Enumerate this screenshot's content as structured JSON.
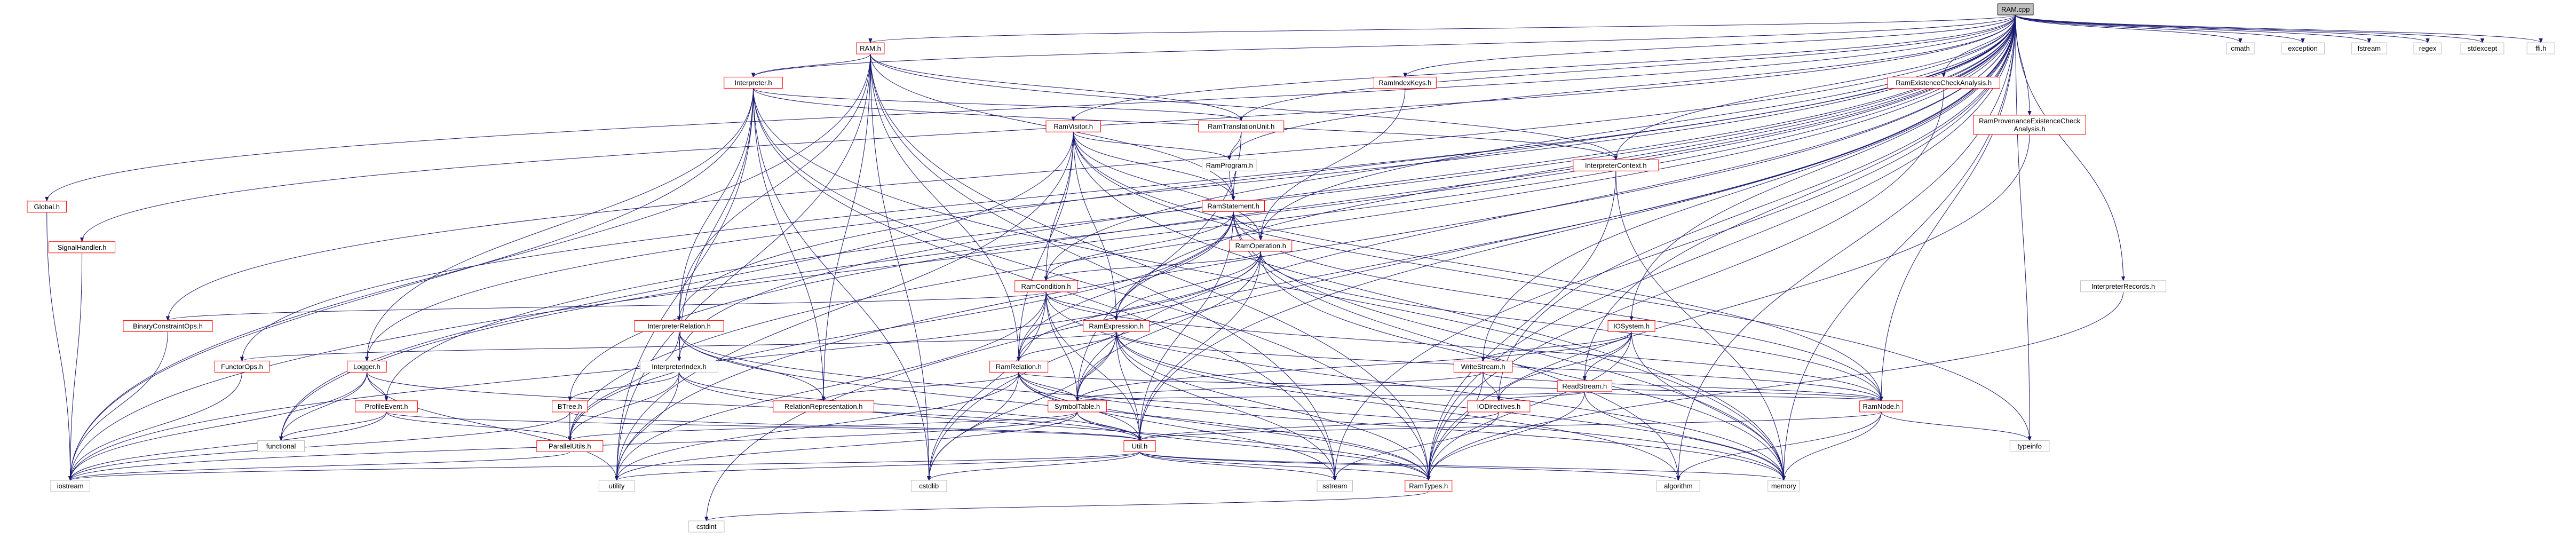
{
  "title": "RAM.cpp",
  "colors": {
    "edge": "#191970",
    "root_fill": "#bfbfbf",
    "linked_border": "#ff0000",
    "plain_border": "#bfbfbf"
  },
  "nodes": [
    {
      "id": "root",
      "label": "RAM.cpp",
      "kind": "root"
    },
    {
      "id": "ram_h",
      "label": "RAM.h",
      "kind": "red"
    },
    {
      "id": "interpreter_h",
      "label": "Interpreter.h",
      "kind": "red"
    },
    {
      "id": "ramindexkeys_h",
      "label": "RamIndexKeys.h",
      "kind": "red"
    },
    {
      "id": "ramexistcheck_h",
      "label": "RamExistenceCheckAnalysis.h",
      "kind": "red"
    },
    {
      "id": "ramprovexist_h",
      "label": "RamProvenanceExistenceCheck\nAnalysis.h",
      "kind": "red"
    },
    {
      "id": "ramvisitor_h",
      "label": "RamVisitor.h",
      "kind": "red"
    },
    {
      "id": "ramtransunit_h",
      "label": "RamTranslationUnit.h",
      "kind": "red"
    },
    {
      "id": "interpctx_h",
      "label": "InterpreterContext.h",
      "kind": "red"
    },
    {
      "id": "ramprogram_h",
      "label": "RamProgram.h",
      "kind": "plain"
    },
    {
      "id": "ramstatement_h",
      "label": "RamStatement.h",
      "kind": "red"
    },
    {
      "id": "ramoperation_h",
      "label": "RamOperation.h",
      "kind": "red"
    },
    {
      "id": "ramcondition_h",
      "label": "RamCondition.h",
      "kind": "red"
    },
    {
      "id": "ramexpression_h",
      "label": "RamExpression.h",
      "kind": "red"
    },
    {
      "id": "ramrelation_h",
      "label": "RamRelation.h",
      "kind": "red"
    },
    {
      "id": "interprelation_h",
      "label": "InterpreterRelation.h",
      "kind": "red"
    },
    {
      "id": "interpindex_h",
      "label": "InterpreterIndex.h",
      "kind": "plain"
    },
    {
      "id": "interprecords_h",
      "label": "InterpreterRecords.h",
      "kind": "plain"
    },
    {
      "id": "iosystem_h",
      "label": "IOSystem.h",
      "kind": "red"
    },
    {
      "id": "writestream_h",
      "label": "WriteStream.h",
      "kind": "red"
    },
    {
      "id": "readstream_h",
      "label": "ReadStream.h",
      "kind": "red"
    },
    {
      "id": "ramnode_h",
      "label": "RamNode.h",
      "kind": "red"
    },
    {
      "id": "iodirectives_h",
      "label": "IODirectives.h",
      "kind": "red"
    },
    {
      "id": "symboltable_h",
      "label": "SymbolTable.h",
      "kind": "red"
    },
    {
      "id": "relrep_h",
      "label": "RelationRepresentation.h",
      "kind": "red"
    },
    {
      "id": "util_h",
      "label": "Util.h",
      "kind": "red"
    },
    {
      "id": "ramtypes_h",
      "label": "RamTypes.h",
      "kind": "red"
    },
    {
      "id": "global_h",
      "label": "Global.h",
      "kind": "red"
    },
    {
      "id": "signalhandler_h",
      "label": "SignalHandler.h",
      "kind": "red"
    },
    {
      "id": "binconstraint_h",
      "label": "BinaryConstraintOps.h",
      "kind": "red"
    },
    {
      "id": "functorops_h",
      "label": "FunctorOps.h",
      "kind": "red"
    },
    {
      "id": "logger_h",
      "label": "Logger.h",
      "kind": "red"
    },
    {
      "id": "profileevent_h",
      "label": "ProfileEvent.h",
      "kind": "red"
    },
    {
      "id": "btree_h",
      "label": "BTree.h",
      "kind": "red"
    },
    {
      "id": "parallelutils_h",
      "label": "ParallelUtils.h",
      "kind": "red"
    },
    {
      "id": "iostream",
      "label": "iostream",
      "kind": "plain"
    },
    {
      "id": "functional",
      "label": "functional",
      "kind": "plain"
    },
    {
      "id": "utility",
      "label": "utility",
      "kind": "plain"
    },
    {
      "id": "cstdlib",
      "label": "cstdlib",
      "kind": "plain"
    },
    {
      "id": "sstream",
      "label": "sstream",
      "kind": "plain"
    },
    {
      "id": "algorithm",
      "label": "algorithm",
      "kind": "plain"
    },
    {
      "id": "memory",
      "label": "memory",
      "kind": "plain"
    },
    {
      "id": "typeinfo",
      "label": "typeinfo",
      "kind": "plain"
    },
    {
      "id": "cstdint",
      "label": "cstdint",
      "kind": "plain"
    },
    {
      "id": "cmath",
      "label": "cmath",
      "kind": "plain"
    },
    {
      "id": "exception",
      "label": "exception",
      "kind": "plain"
    },
    {
      "id": "fstream",
      "label": "fstream",
      "kind": "plain"
    },
    {
      "id": "regex",
      "label": "regex",
      "kind": "plain"
    },
    {
      "id": "stdexcept",
      "label": "stdexcept",
      "kind": "plain"
    },
    {
      "id": "ffi_h",
      "label": "ffi.h",
      "kind": "plain"
    }
  ],
  "edges": [
    [
      "root",
      "ram_h"
    ],
    [
      "root",
      "interpreter_h"
    ],
    [
      "root",
      "ramindexkeys_h"
    ],
    [
      "root",
      "ramexistcheck_h"
    ],
    [
      "root",
      "ramprovexist_h"
    ],
    [
      "root",
      "ramvisitor_h"
    ],
    [
      "root",
      "ramtransunit_h"
    ],
    [
      "root",
      "interpctx_h"
    ],
    [
      "root",
      "ramprogram_h"
    ],
    [
      "root",
      "ramoperation_h"
    ],
    [
      "root",
      "ramcondition_h"
    ],
    [
      "root",
      "ramexpression_h"
    ],
    [
      "root",
      "interprelation_h"
    ],
    [
      "root",
      "interpindex_h"
    ],
    [
      "root",
      "interprecords_h"
    ],
    [
      "root",
      "iosystem_h"
    ],
    [
      "root",
      "writestream_h"
    ],
    [
      "root",
      "readstream_h"
    ],
    [
      "root",
      "ramnode_h"
    ],
    [
      "root",
      "iodirectives_h"
    ],
    [
      "root",
      "symboltable_h"
    ],
    [
      "root",
      "util_h"
    ],
    [
      "root",
      "ramtypes_h"
    ],
    [
      "root",
      "global_h"
    ],
    [
      "root",
      "signalhandler_h"
    ],
    [
      "root",
      "binconstraint_h"
    ],
    [
      "root",
      "functorops_h"
    ],
    [
      "root",
      "logger_h"
    ],
    [
      "root",
      "profileevent_h"
    ],
    [
      "root",
      "btree_h"
    ],
    [
      "root",
      "parallelutils_h"
    ],
    [
      "root",
      "iostream"
    ],
    [
      "root",
      "functional"
    ],
    [
      "root",
      "utility"
    ],
    [
      "root",
      "cstdlib"
    ],
    [
      "root",
      "sstream"
    ],
    [
      "root",
      "algorithm"
    ],
    [
      "root",
      "memory"
    ],
    [
      "root",
      "typeinfo"
    ],
    [
      "root",
      "cstdint"
    ],
    [
      "root",
      "cmath"
    ],
    [
      "root",
      "exception"
    ],
    [
      "root",
      "fstream"
    ],
    [
      "root",
      "regex"
    ],
    [
      "root",
      "stdexcept"
    ],
    [
      "root",
      "ffi_h"
    ],
    [
      "ram_h",
      "interpreter_h"
    ],
    [
      "ram_h",
      "ramtransunit_h"
    ],
    [
      "ram_h",
      "interpctx_h"
    ],
    [
      "ram_h",
      "interprelation_h"
    ],
    [
      "ram_h",
      "ramrelation_h"
    ],
    [
      "ram_h",
      "relrep_h"
    ],
    [
      "ram_h",
      "ramtypes_h"
    ],
    [
      "ram_h",
      "iostream"
    ],
    [
      "ram_h",
      "cstdlib"
    ],
    [
      "ram_h",
      "sstream"
    ],
    [
      "ram_h",
      "utility"
    ],
    [
      "ram_h",
      "ramstatement_h"
    ],
    [
      "interpreter_h",
      "ramtransunit_h"
    ],
    [
      "interpreter_h",
      "interpctx_h"
    ],
    [
      "interpreter_h",
      "interprelation_h"
    ],
    [
      "interpreter_h",
      "interpindex_h"
    ],
    [
      "interpreter_h",
      "logger_h"
    ],
    [
      "interpreter_h",
      "relrep_h"
    ],
    [
      "interpreter_h",
      "ramtypes_h"
    ],
    [
      "interpreter_h",
      "iostream"
    ],
    [
      "interpreter_h",
      "cstdlib"
    ],
    [
      "interpreter_h",
      "utility"
    ],
    [
      "interpreter_h",
      "sstream"
    ],
    [
      "interpreter_h",
      "memory"
    ],
    [
      "ramindexkeys_h",
      "ramoperation_h"
    ],
    [
      "ramexistcheck_h",
      "ramtypes_h"
    ],
    [
      "ramprovexist_h",
      "ramtypes_h"
    ],
    [
      "ramvisitor_h",
      "ramprogram_h"
    ],
    [
      "ramvisitor_h",
      "ramstatement_h"
    ],
    [
      "ramvisitor_h",
      "ramoperation_h"
    ],
    [
      "ramvisitor_h",
      "ramcondition_h"
    ],
    [
      "ramvisitor_h",
      "ramexpression_h"
    ],
    [
      "ramvisitor_h",
      "ramrelation_h"
    ],
    [
      "ramvisitor_h",
      "ramnode_h"
    ],
    [
      "ramvisitor_h",
      "utility"
    ],
    [
      "ramvisitor_h",
      "typeinfo"
    ],
    [
      "ramvisitor_h",
      "functional"
    ],
    [
      "ramvisitor_h",
      "memory"
    ],
    [
      "ramtransunit_h",
      "ramprogram_h"
    ],
    [
      "ramtransunit_h",
      "ramstatement_h"
    ],
    [
      "ramtransunit_h",
      "symboltable_h"
    ],
    [
      "interpctx_h",
      "ramtypes_h"
    ],
    [
      "interpctx_h",
      "memory"
    ],
    [
      "ramprogram_h",
      "ramstatement_h"
    ],
    [
      "ramstatement_h",
      "ramoperation_h"
    ],
    [
      "ramstatement_h",
      "ramcondition_h"
    ],
    [
      "ramstatement_h",
      "ramexpression_h"
    ],
    [
      "ramstatement_h",
      "ramrelation_h"
    ],
    [
      "ramstatement_h",
      "ramnode_h"
    ],
    [
      "ramstatement_h",
      "util_h"
    ],
    [
      "ramstatement_h",
      "algorithm"
    ],
    [
      "ramstatement_h",
      "memory"
    ],
    [
      "ramstatement_h",
      "parallelutils_h"
    ],
    [
      "ramoperation_h",
      "ramcondition_h"
    ],
    [
      "ramoperation_h",
      "ramexpression_h"
    ],
    [
      "ramoperation_h",
      "ramrelation_h"
    ],
    [
      "ramoperation_h",
      "ramnode_h"
    ],
    [
      "ramoperation_h",
      "util_h"
    ],
    [
      "ramoperation_h",
      "symboltable_h"
    ],
    [
      "ramoperation_h",
      "iostream"
    ],
    [
      "ramoperation_h",
      "memory"
    ],
    [
      "ramcondition_h",
      "ramexpression_h"
    ],
    [
      "ramcondition_h",
      "ramrelation_h"
    ],
    [
      "ramcondition_h",
      "binconstraint_h"
    ],
    [
      "ramcondition_h",
      "ramnode_h"
    ],
    [
      "ramcondition_h",
      "symboltable_h"
    ],
    [
      "ramcondition_h",
      "util_h"
    ],
    [
      "ramcondition_h",
      "utility"
    ],
    [
      "ramcondition_h",
      "memory"
    ],
    [
      "ramcondition_h",
      "cstdlib"
    ],
    [
      "ramexpression_h",
      "ramrelation_h"
    ],
    [
      "ramexpression_h",
      "functorops_h"
    ],
    [
      "ramexpression_h",
      "ramnode_h"
    ],
    [
      "ramexpression_h",
      "symboltable_h"
    ],
    [
      "ramexpression_h",
      "util_h"
    ],
    [
      "ramexpression_h",
      "ramtypes_h"
    ],
    [
      "ramexpression_h",
      "algorithm"
    ],
    [
      "ramexpression_h",
      "sstream"
    ],
    [
      "ramexpression_h",
      "memory"
    ],
    [
      "ramexpression_h",
      "cstdlib"
    ],
    [
      "ramrelation_h",
      "ramnode_h"
    ],
    [
      "ramrelation_h",
      "relrep_h"
    ],
    [
      "ramrelation_h",
      "symboltable_h"
    ],
    [
      "ramrelation_h",
      "util_h"
    ],
    [
      "ramrelation_h",
      "ramtypes_h"
    ],
    [
      "ramrelation_h",
      "utility"
    ],
    [
      "ramrelation_h",
      "cstdlib"
    ],
    [
      "ramrelation_h",
      "memory"
    ],
    [
      "ramrelation_h",
      "sstream"
    ],
    [
      "interprelation_h",
      "interpindex_h"
    ],
    [
      "interprelation_h",
      "parallelutils_h"
    ],
    [
      "interprelation_h",
      "ramtypes_h"
    ],
    [
      "interprelation_h",
      "relrep_h"
    ],
    [
      "interprelation_h",
      "memory"
    ],
    [
      "interpindex_h",
      "btree_h"
    ],
    [
      "interpindex_h",
      "util_h"
    ],
    [
      "interpindex_h",
      "ramtypes_h"
    ],
    [
      "interpindex_h",
      "utility"
    ],
    [
      "interpindex_h",
      "parallelutils_h"
    ],
    [
      "interprecords_h",
      "ramtypes_h"
    ],
    [
      "iosystem_h",
      "readstream_h"
    ],
    [
      "iosystem_h",
      "writestream_h"
    ],
    [
      "iosystem_h",
      "iodirectives_h"
    ],
    [
      "iosystem_h",
      "symboltable_h"
    ],
    [
      "iosystem_h",
      "memory"
    ],
    [
      "iosystem_h",
      "ramtypes_h"
    ],
    [
      "writestream_h",
      "iodirectives_h"
    ],
    [
      "writestream_h",
      "symboltable_h"
    ],
    [
      "writestream_h",
      "ramtypes_h"
    ],
    [
      "writestream_h",
      "ramnode_h"
    ],
    [
      "readstream_h",
      "iodirectives_h"
    ],
    [
      "readstream_h",
      "symboltable_h"
    ],
    [
      "readstream_h",
      "ramtypes_h"
    ],
    [
      "readstream_h",
      "memory"
    ],
    [
      "readstream_h",
      "ramnode_h"
    ],
    [
      "ramnode_h",
      "util_h"
    ],
    [
      "ramnode_h",
      "memory"
    ],
    [
      "ramnode_h",
      "typeinfo"
    ],
    [
      "ramnode_h",
      "algorithm"
    ],
    [
      "iodirectives_h",
      "util_h"
    ],
    [
      "iodirectives_h",
      "sstream"
    ],
    [
      "symboltable_h",
      "parallelutils_h"
    ],
    [
      "symboltable_h",
      "util_h"
    ],
    [
      "symboltable_h",
      "ramtypes_h"
    ],
    [
      "symboltable_h",
      "iostream"
    ],
    [
      "symboltable_h",
      "utility"
    ],
    [
      "util_h",
      "iostream"
    ],
    [
      "util_h",
      "utility"
    ],
    [
      "util_h",
      "cstdlib"
    ],
    [
      "util_h",
      "sstream"
    ],
    [
      "util_h",
      "algorithm"
    ],
    [
      "util_h",
      "memory"
    ],
    [
      "util_h",
      "ramtypes_h"
    ],
    [
      "ramtypes_h",
      "cstdint"
    ],
    [
      "global_h",
      "iostream"
    ],
    [
      "signalhandler_h",
      "iostream"
    ],
    [
      "binconstraint_h",
      "iostream"
    ],
    [
      "functorops_h",
      "iostream"
    ],
    [
      "logger_h",
      "profileevent_h"
    ],
    [
      "logger_h",
      "functional"
    ],
    [
      "logger_h",
      "iostream"
    ],
    [
      "logger_h",
      "utility"
    ],
    [
      "logger_h",
      "util_h"
    ],
    [
      "profileevent_h",
      "functional"
    ],
    [
      "profileevent_h",
      "iostream"
    ],
    [
      "profileevent_h",
      "util_h"
    ],
    [
      "profileevent_h",
      "parallelutils_h"
    ],
    [
      "btree_h",
      "parallelutils_h"
    ],
    [
      "btree_h",
      "util_h"
    ],
    [
      "btree_h",
      "iostream"
    ],
    [
      "parallelutils_h",
      "iostream"
    ]
  ]
}
